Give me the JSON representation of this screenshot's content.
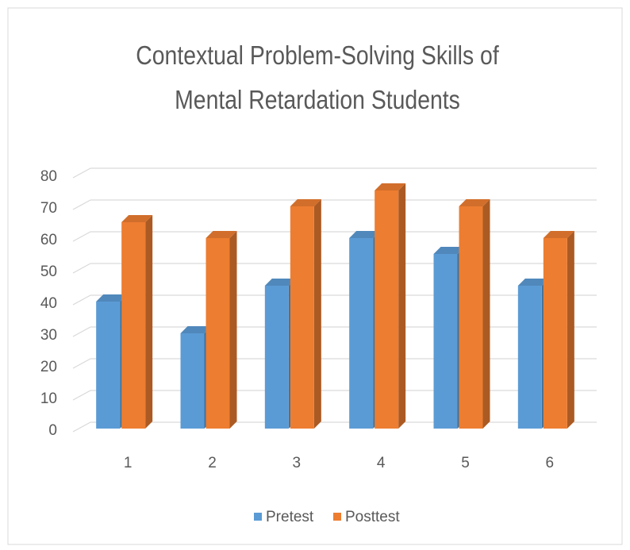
{
  "chart_data": {
    "type": "bar3d",
    "title": "Contextual Problem-Solving Skills of Mental Retardation Students",
    "categories": [
      "1",
      "2",
      "3",
      "4",
      "5",
      "6"
    ],
    "series": [
      {
        "name": "Pretest",
        "color": "#5b9bd5",
        "values": [
          40,
          30,
          45,
          60,
          55,
          45
        ]
      },
      {
        "name": "Posttest",
        "color": "#ed7d31",
        "values": [
          65,
          60,
          70,
          75,
          70,
          60
        ]
      }
    ],
    "ylim": [
      0,
      80
    ],
    "yticks": [
      0,
      10,
      20,
      30,
      40,
      50,
      60,
      70,
      80
    ],
    "grid": true,
    "legend": "bottom"
  }
}
